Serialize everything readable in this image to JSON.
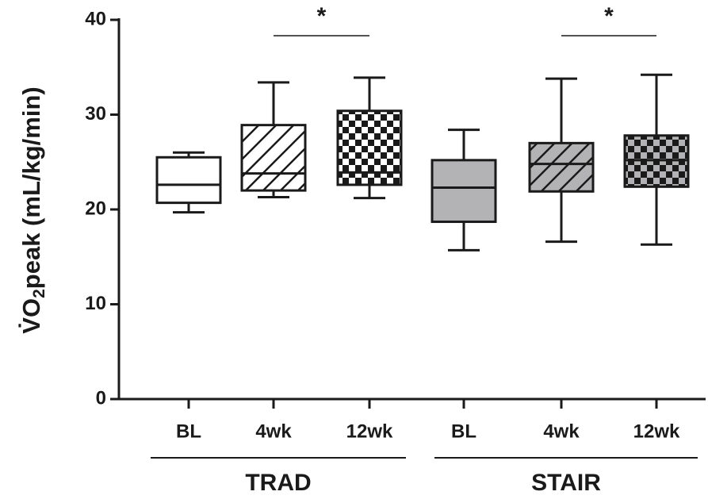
{
  "chart_data": {
    "type": "box",
    "ylabel": {
      "main": "V̇O",
      "sub": "2",
      "rest": "peak (mL/kg/min)"
    },
    "ylim": [
      0,
      40
    ],
    "yticks": [
      0,
      10,
      20,
      30,
      40
    ],
    "groups": [
      {
        "name": "TRAD",
        "annotation": {
          "text": "*",
          "between": [
            "4wk",
            "12wk"
          ]
        },
        "boxes": [
          {
            "category": "BL",
            "color": "#ffffff",
            "pattern": "none",
            "min": 19.7,
            "q1": 20.7,
            "median": 22.6,
            "q3": 25.5,
            "max": 26.0
          },
          {
            "category": "4wk",
            "color": "#ffffff",
            "pattern": "hatch",
            "min": 21.3,
            "q1": 22.0,
            "median": 23.8,
            "q3": 28.9,
            "max": 33.4
          },
          {
            "category": "12wk",
            "color": "#ffffff",
            "pattern": "checker",
            "min": 21.2,
            "q1": 22.6,
            "median": 23.9,
            "q3": 30.4,
            "max": 33.9
          }
        ]
      },
      {
        "name": "STAIR",
        "annotation": {
          "text": "*",
          "between": [
            "4wk",
            "12wk"
          ]
        },
        "boxes": [
          {
            "category": "BL",
            "color": "#b3b3b6",
            "pattern": "none",
            "min": 15.7,
            "q1": 18.7,
            "median": 22.3,
            "q3": 25.2,
            "max": 28.4
          },
          {
            "category": "4wk",
            "color": "#b3b3b6",
            "pattern": "hatch",
            "min": 16.6,
            "q1": 21.9,
            "median": 24.8,
            "q3": 27.0,
            "max": 33.8
          },
          {
            "category": "12wk",
            "color": "#b3b3b6",
            "pattern": "checker",
            "min": 16.3,
            "q1": 22.4,
            "median": 25.2,
            "q3": 27.8,
            "max": 34.2
          }
        ]
      }
    ]
  }
}
